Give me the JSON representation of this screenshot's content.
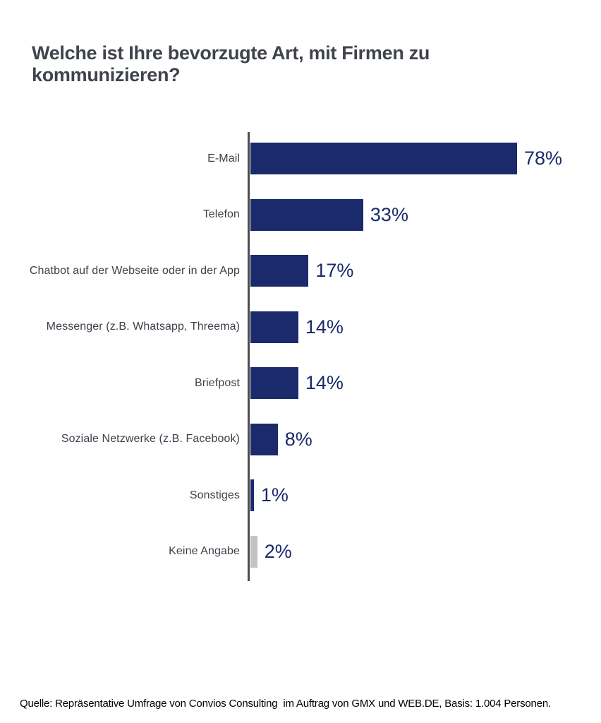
{
  "title": "Welche ist Ihre bevorzugte Art, mit Firmen zu kommunizieren?",
  "source": "Quelle: Repräsentative Umfrage von Convios Consulting  im Auftrag von GMX und WEB.DE, Basis: 1.004 Personen.",
  "colors": {
    "bar_primary": "#1a2a6b",
    "bar_muted": "#c2c2c2",
    "axis": "#4d4d4d",
    "title_text": "#3f434c",
    "category_text": "#3d414a",
    "value_text": "#1a2a6b",
    "background": "#ffffff"
  },
  "chart_data": {
    "type": "bar",
    "orientation": "horizontal",
    "title": "Welche ist Ihre bevorzugte Art, mit Firmen zu kommunizieren?",
    "xlabel": "",
    "ylabel": "",
    "xlim": [
      0,
      100
    ],
    "grid": false,
    "legend": false,
    "categories": [
      "E-Mail",
      "Telefon",
      "Chatbot auf der Webseite oder in der App",
      "Messenger (z.B. Whatsapp, Threema)",
      "Briefpost",
      "Soziale Netzwerke (z.B. Facebook)",
      "Sonstiges",
      "Keine Angabe"
    ],
    "values": [
      78,
      33,
      17,
      14,
      14,
      8,
      1,
      2
    ],
    "value_labels": [
      "78%",
      "33%",
      "17%",
      "14%",
      "14%",
      "8%",
      "1%",
      "2%"
    ],
    "bar_colors": [
      "primary",
      "primary",
      "primary",
      "primary",
      "primary",
      "primary",
      "primary",
      "muted"
    ]
  }
}
